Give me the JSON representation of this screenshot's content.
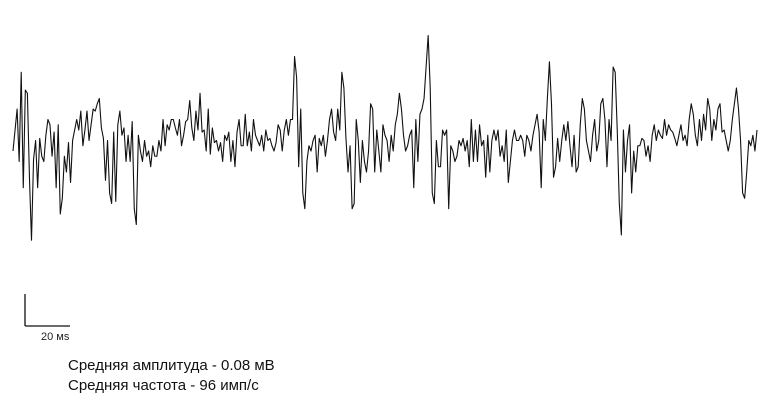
{
  "chart_data": {
    "type": "line",
    "title": "",
    "xlabel": "",
    "ylabel": "",
    "series": [
      {
        "values": [
          0,
          20,
          40,
          -10,
          75,
          -35,
          58,
          55,
          -25,
          -85,
          -8,
          10,
          -35,
          12,
          -5,
          -10,
          15,
          30,
          25,
          -5,
          18,
          -35,
          25,
          -60,
          -45,
          -5,
          -20,
          8,
          -30,
          10,
          20,
          30,
          20,
          38,
          5,
          20,
          38,
          10,
          25,
          40,
          38,
          45,
          50,
          22,
          12,
          -28,
          10,
          -40,
          -50,
          18,
          -48,
          25,
          38,
          15,
          22,
          -10,
          15,
          -10,
          28,
          -55,
          -70,
          15,
          0,
          -10,
          10,
          -5,
          0,
          -15,
          5,
          -5,
          -5,
          10,
          0,
          30,
          5,
          25,
          20,
          30,
          30,
          22,
          15,
          30,
          5,
          15,
          28,
          30,
          48,
          22,
          10,
          38,
          20,
          55,
          18,
          20,
          0,
          40,
          -3,
          22,
          8,
          10,
          0,
          8,
          -10,
          15,
          10,
          18,
          -10,
          10,
          -15,
          18,
          30,
          5,
          5,
          35,
          5,
          18,
          0,
          30,
          15,
          10,
          5,
          15,
          0,
          20,
          10,
          12,
          5,
          0,
          8,
          25,
          20,
          0,
          20,
          30,
          15,
          30,
          30,
          90,
          70,
          -15,
          40,
          -40,
          -55,
          -10,
          5,
          0,
          10,
          15,
          -20,
          12,
          5,
          15,
          -5,
          10,
          30,
          40,
          18,
          10,
          40,
          20,
          75,
          60,
          12,
          -20,
          5,
          -55,
          -50,
          30,
          10,
          -30,
          10,
          -10,
          -20,
          0,
          45,
          40,
          -20,
          20,
          0,
          -20,
          25,
          15,
          10,
          -10,
          15,
          0,
          25,
          35,
          55,
          40,
          15,
          0,
          5,
          15,
          20,
          -35,
          30,
          -10,
          35,
          40,
          50,
          80,
          110,
          60,
          -40,
          -50,
          10,
          -15,
          -15,
          20,
          15,
          20,
          -55,
          5,
          0,
          -10,
          -5,
          10,
          5,
          12,
          0,
          10,
          -15,
          30,
          -10,
          20,
          -10,
          25,
          5,
          10,
          -25,
          15,
          -20,
          10,
          20,
          10,
          20,
          -5,
          5,
          -10,
          20,
          -30,
          -10,
          10,
          20,
          10,
          10,
          15,
          10,
          -5,
          15,
          10,
          0,
          15,
          25,
          35,
          18,
          -35,
          30,
          10,
          50,
          85,
          45,
          -25,
          -15,
          12,
          -10,
          10,
          25,
          10,
          28,
          5,
          -15,
          15,
          -20,
          -15,
          25,
          50,
          40,
          10,
          0,
          -10,
          15,
          30,
          0,
          10,
          45,
          50,
          30,
          -15,
          30,
          10,
          80,
          75,
          20,
          -50,
          -80,
          20,
          -20,
          10,
          25,
          -40,
          0,
          -20,
          5,
          5,
          12,
          10,
          -5,
          5,
          -10,
          15,
          25,
          10,
          20,
          15,
          12,
          30,
          15,
          25,
          20,
          18,
          12,
          5,
          15,
          25,
          10,
          15,
          5,
          30,
          45,
          35,
          15,
          5,
          30,
          10,
          35,
          20,
          50,
          40,
          10,
          30,
          20,
          40,
          45,
          18,
          20,
          10,
          0,
          10,
          30,
          45,
          60,
          40,
          10,
          -40,
          -45,
          -20,
          10,
          5,
          15,
          0,
          20
        ]
      }
    ],
    "scale_bar": {
      "time_label": "20 мs",
      "time_ms": 20
    }
  },
  "stats": {
    "amplitude": "Средняя амплитуда -  0.08 мВ",
    "frequency": "Средняя частота -  96 имп/с"
  },
  "colors": {
    "trace": "#111111",
    "background": "#ffffff"
  }
}
